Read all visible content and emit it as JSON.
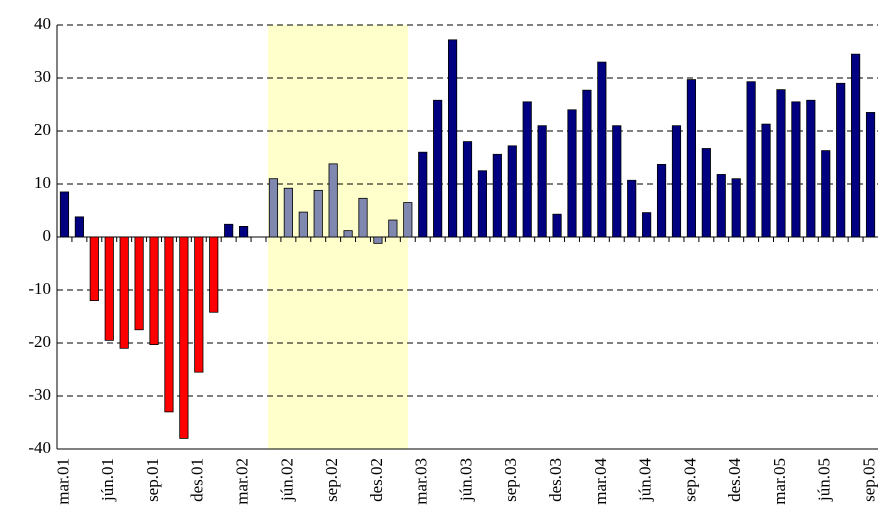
{
  "chart_data": {
    "type": "bar",
    "categories": [
      "mar.01",
      null,
      null,
      "jún.01",
      null,
      null,
      "sep.01",
      null,
      null,
      "des.01",
      null,
      null,
      "mar.02",
      null,
      null,
      "jún.02",
      null,
      null,
      "sep.02",
      null,
      null,
      "des.02",
      null,
      null,
      "mar.03",
      null,
      null,
      "jún.03",
      null,
      null,
      "sep.03",
      null,
      null,
      "des.03",
      null,
      null,
      "mar.04",
      null,
      null,
      "jún.04",
      null,
      null,
      "sep.04",
      null,
      null,
      "des.04",
      null,
      null,
      "mar.05",
      null,
      null,
      "jún.05",
      null,
      null,
      "sep.05"
    ],
    "values": [
      8.5,
      3.8,
      -12,
      -19.5,
      -21,
      -17.5,
      -20.3,
      -33,
      -38,
      -25.5,
      -14.2,
      2.4,
      2.0,
      null,
      11,
      9.2,
      4.7,
      8.8,
      13.8,
      1.2,
      7.3,
      -1.2,
      3.2,
      6.5,
      16,
      25.8,
      37.2,
      18,
      12.5,
      15.6,
      17.2,
      25.5,
      21,
      4.3,
      24,
      27.7,
      33,
      21,
      10.7,
      4.6,
      13.7,
      21,
      29.7,
      16.7,
      11.8,
      11,
      29.3,
      21.3,
      27.8,
      25.5,
      25.8,
      16.3,
      29,
      34.5,
      23.5
    ],
    "colors": [
      "#000080",
      "#000080",
      "#ff0000",
      "#ff0000",
      "#ff0000",
      "#ff0000",
      "#ff0000",
      "#ff0000",
      "#ff0000",
      "#ff0000",
      "#ff0000",
      "#000080",
      "#000080",
      "#000080",
      "#8088b0",
      "#8088b0",
      "#8088b0",
      "#8088b0",
      "#8088b0",
      "#8088b0",
      "#8088b0",
      "#8088b0",
      "#8088b0",
      "#8088b0",
      "#000080",
      "#000080",
      "#000080",
      "#000080",
      "#000080",
      "#000080",
      "#000080",
      "#000080",
      "#000080",
      "#000080",
      "#000080",
      "#000080",
      "#000080",
      "#000080",
      "#000080",
      "#000080",
      "#000080",
      "#000080",
      "#000080",
      "#000080",
      "#000080",
      "#000080",
      "#000080",
      "#000080",
      "#000080",
      "#000080",
      "#000080",
      "#000080",
      "#000080",
      "#000080",
      "#000080"
    ],
    "ylim": [
      -40,
      40
    ],
    "yticks": [
      -40,
      -30,
      -20,
      -10,
      0,
      10,
      20,
      30,
      40
    ],
    "grid": true
  }
}
